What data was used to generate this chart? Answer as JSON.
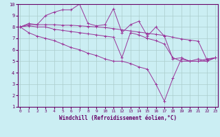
{
  "bg_color": "#cbeef3",
  "grid_color": "#aacccc",
  "line_color": "#993399",
  "xlim": [
    0,
    23
  ],
  "ylim": [
    1,
    10
  ],
  "xticks": [
    0,
    1,
    2,
    3,
    4,
    5,
    6,
    7,
    8,
    9,
    10,
    11,
    12,
    13,
    14,
    15,
    16,
    17,
    18,
    19,
    20,
    21,
    22,
    23
  ],
  "yticks": [
    1,
    2,
    3,
    4,
    5,
    6,
    7,
    8,
    9,
    10
  ],
  "xlabel": "Windchill (Refroidissement éolien,°C)",
  "series": [
    [
      8.0,
      8.2,
      8.2,
      8.2,
      8.2,
      8.15,
      8.15,
      8.1,
      8.05,
      8.0,
      7.95,
      7.85,
      7.75,
      7.65,
      7.55,
      7.45,
      7.35,
      7.25,
      7.1,
      6.95,
      6.85,
      6.75,
      5.15,
      5.3
    ],
    [
      8.0,
      8.3,
      8.2,
      9.0,
      9.3,
      9.5,
      9.5,
      10.0,
      8.3,
      8.1,
      8.2,
      9.6,
      7.5,
      8.2,
      8.5,
      7.2,
      8.0,
      7.2,
      5.2,
      5.3,
      5.0,
      5.2,
      5.0,
      5.3
    ],
    [
      8.0,
      8.1,
      8.0,
      8.0,
      7.8,
      7.7,
      7.6,
      7.5,
      7.4,
      7.3,
      7.2,
      7.1,
      5.3,
      7.5,
      7.3,
      7.0,
      6.8,
      6.5,
      5.3,
      5.0,
      5.0,
      5.0,
      5.2,
      5.3
    ],
    [
      8.0,
      7.5,
      7.2,
      7.0,
      6.8,
      6.5,
      6.2,
      6.0,
      5.7,
      5.5,
      5.2,
      5.0,
      5.0,
      4.8,
      4.5,
      4.3,
      3.0,
      1.5,
      3.5,
      5.2,
      5.0,
      5.0,
      5.0,
      5.3
    ]
  ],
  "xlabel_fontsize": 5.5,
  "tick_fontsize": 4.5
}
